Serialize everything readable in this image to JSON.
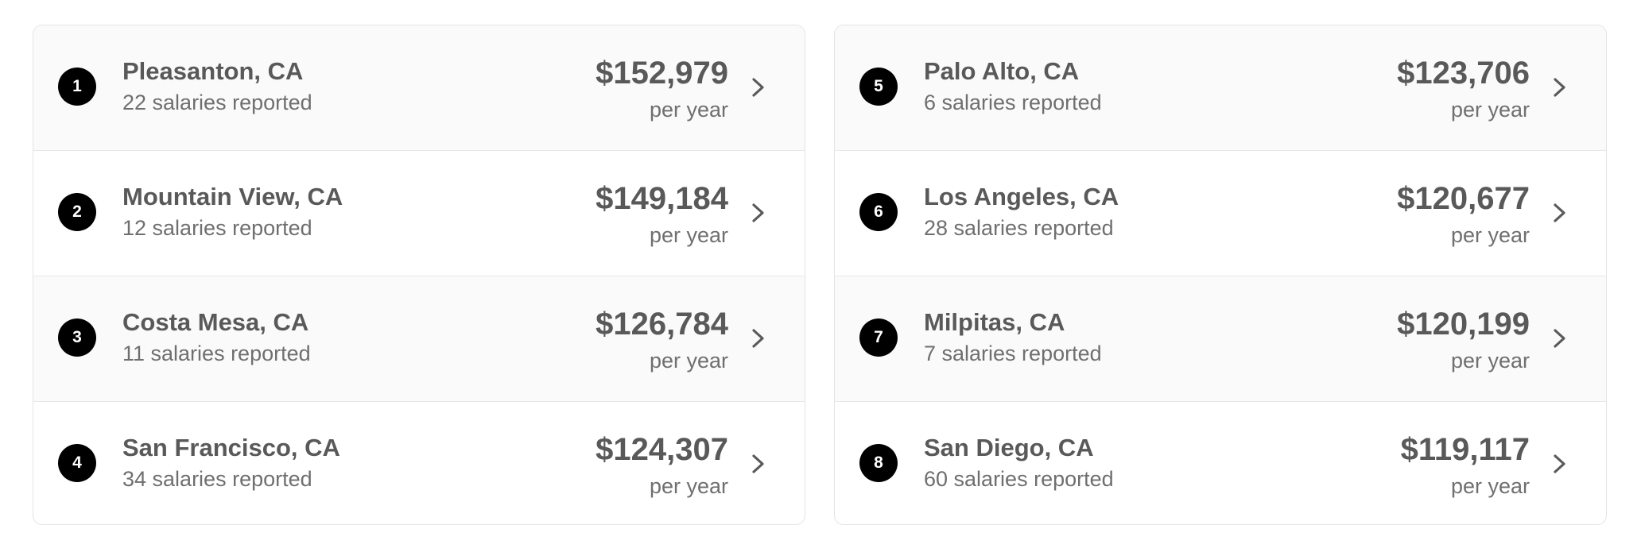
{
  "salary_list": {
    "left_column": [
      {
        "rank": "1",
        "city": "Pleasanton, CA",
        "count": "22 salaries reported",
        "salary": "$152,979",
        "period": "per year"
      },
      {
        "rank": "2",
        "city": "Mountain View, CA",
        "count": "12 salaries reported",
        "salary": "$149,184",
        "period": "per year"
      },
      {
        "rank": "3",
        "city": "Costa Mesa, CA",
        "count": "11 salaries reported",
        "salary": "$126,784",
        "period": "per year"
      },
      {
        "rank": "4",
        "city": "San Francisco, CA",
        "count": "34 salaries reported",
        "salary": "$124,307",
        "period": "per year"
      }
    ],
    "right_column": [
      {
        "rank": "5",
        "city": "Palo Alto, CA",
        "count": "6 salaries reported",
        "salary": "$123,706",
        "period": "per year"
      },
      {
        "rank": "6",
        "city": "Los Angeles, CA",
        "count": "28 salaries reported",
        "salary": "$120,677",
        "period": "per year"
      },
      {
        "rank": "7",
        "city": "Milpitas, CA",
        "count": "7 salaries reported",
        "salary": "$120,199",
        "period": "per year"
      },
      {
        "rank": "8",
        "city": "San Diego, CA",
        "count": "60 salaries reported",
        "salary": "$119,117",
        "period": "per year"
      }
    ]
  },
  "icons": {
    "rank_badge": "number-badge",
    "row_action": "chevron-right-icon"
  },
  "colors": {
    "badge_background": "#000000",
    "badge_text": "#ffffff",
    "primary_text": "#595959",
    "secondary_text": "#6f6f6f",
    "alt_row_background": "#fafafa",
    "border": "#e4e4e4"
  }
}
